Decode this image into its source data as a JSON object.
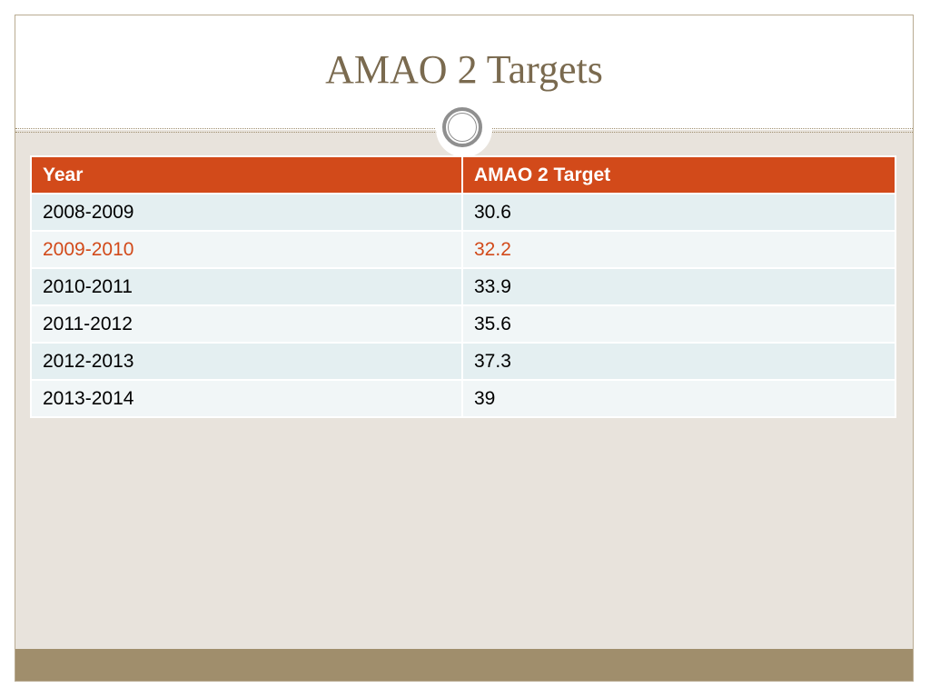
{
  "slide": {
    "title": "AMAO 2 Targets"
  },
  "table": {
    "headers": [
      "Year",
      "AMAO 2 Target"
    ],
    "rows": [
      {
        "year": "2008-2009",
        "target": "30.6"
      },
      {
        "year": "2009-2010",
        "target": "32.2",
        "highlighted": true
      },
      {
        "year": "2010-2011",
        "target": "33.9"
      },
      {
        "year": "2011-2012",
        "target": "35.6"
      },
      {
        "year": "2012-2013",
        "target": "37.3"
      },
      {
        "year": "2013-2014",
        "target": "39"
      }
    ]
  },
  "colors": {
    "title": "#7a6a4f",
    "header_fill": "#d24a1a",
    "highlight_text": "#d24a1a",
    "row_fill_odd": "#e4eff1",
    "row_fill_even": "#f1f6f7",
    "slide_background": "#e8e3dc",
    "footer_band": "#a08e6c"
  }
}
